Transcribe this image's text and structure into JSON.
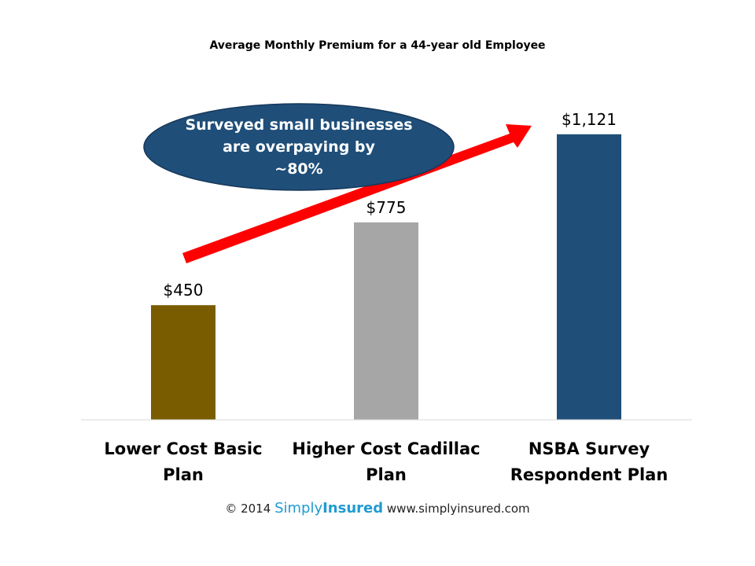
{
  "chart_data": {
    "type": "bar",
    "title": "Average Monthly Premium for a 44-year old Employee",
    "categories": [
      [
        "Lower Cost Basic",
        "Plan"
      ],
      [
        "Higher Cost Cadillac",
        "Plan"
      ],
      [
        "NSBA Survey",
        "Respondent Plan"
      ]
    ],
    "values": [
      450,
      775,
      1121
    ],
    "value_labels": [
      "$450",
      "$775",
      "$1,121"
    ],
    "colors": [
      "#7a5c00",
      "#a6a6a6",
      "#1f4e79"
    ],
    "ylim": [
      0,
      1250
    ],
    "xlabel": "",
    "ylabel": "",
    "grid": false,
    "legend": false,
    "annotation": {
      "lines": [
        "Surveyed small businesses",
        "are overpaying by",
        "~80%"
      ],
      "fill": "#1f4e79",
      "text_color": "#ffffff",
      "arrow_color": "#ff0000"
    }
  },
  "footer": {
    "copyright": "© 2014",
    "brand_simply": "Simply",
    "brand_insured": "Insured",
    "website": "www.simplyinsured.com"
  }
}
